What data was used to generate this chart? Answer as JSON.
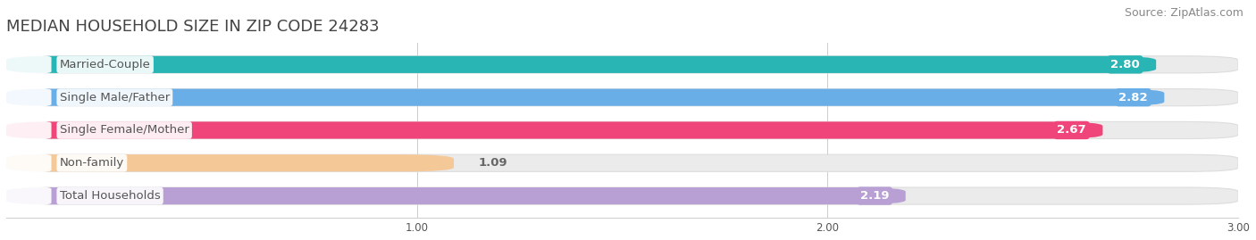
{
  "title": "MEDIAN HOUSEHOLD SIZE IN ZIP CODE 24283",
  "source": "Source: ZipAtlas.com",
  "categories": [
    "Married-Couple",
    "Single Male/Father",
    "Single Female/Mother",
    "Non-family",
    "Total Households"
  ],
  "values": [
    2.8,
    2.82,
    2.67,
    1.09,
    2.19
  ],
  "bar_colors": [
    "#2ab5b5",
    "#6aaee8",
    "#f0457a",
    "#f5c897",
    "#b89fd4"
  ],
  "track_color": "#ebebeb",
  "track_border_color": "#dddddd",
  "xlim_min": 0,
  "xlim_max": 3.0,
  "xticks": [
    1.0,
    2.0,
    3.0
  ],
  "label_text_color": "#555555",
  "value_label_color_inside": "#ffffff",
  "value_label_color_outside": "#666666",
  "title_fontsize": 13,
  "source_fontsize": 9,
  "bar_label_fontsize": 9.5,
  "value_fontsize": 9.5,
  "background_color": "#ffffff",
  "bar_height": 0.52,
  "outside_threshold": 1.5,
  "label_pill_color": "#ffffff",
  "grid_color": "#cccccc"
}
